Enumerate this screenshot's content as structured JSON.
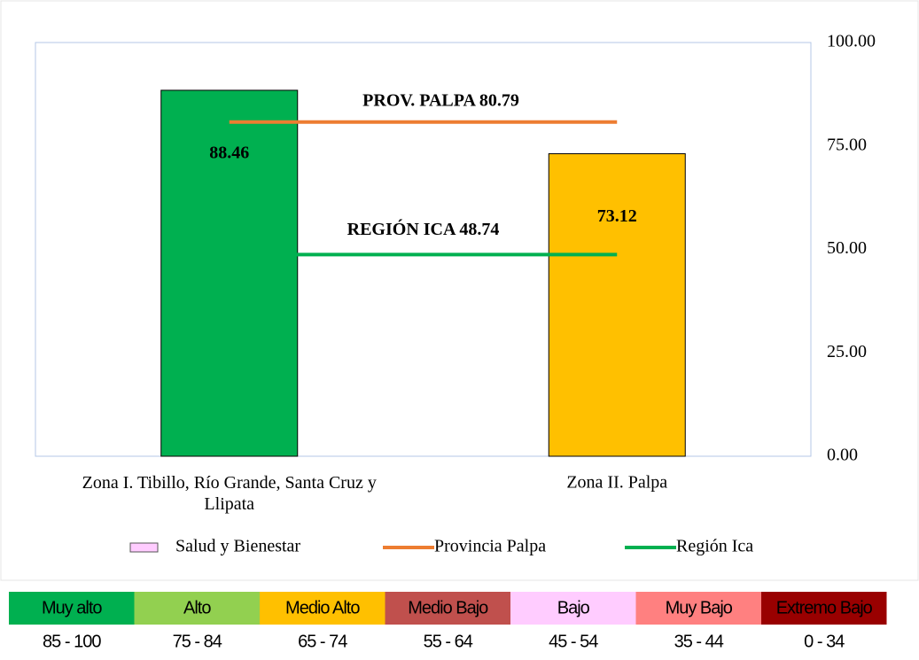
{
  "chart_data": {
    "type": "bar",
    "categories": [
      "Zona I. Tibillo, Río Grande, Santa Cruz y Llipata",
      "Zona II. Palpa"
    ],
    "series": [
      {
        "name": "Salud y Bienestar",
        "color": "#ffccff",
        "values": [
          88.46,
          73.12
        ],
        "bar_colors": [
          "#00b050",
          "#ffc000"
        ]
      }
    ],
    "reference_lines": [
      {
        "name": "Provincia Palpa",
        "color": "#ed7d31",
        "value": 80.79,
        "annotation": "PROV. PALPA 80.79",
        "annotation_color": "#b84c48"
      },
      {
        "name": "Región Ica",
        "color": "#00b050",
        "value": 48.74,
        "annotation": "REGIÓN ICA 48.74",
        "annotation_color": "#00b050"
      }
    ],
    "ylim": [
      0,
      100
    ],
    "yticks": [
      {
        "value": 0,
        "label": "0.00"
      },
      {
        "value": 25,
        "label": "25.00"
      },
      {
        "value": 50,
        "label": "50.00"
      },
      {
        "value": 75,
        "label": "75.00"
      },
      {
        "value": 100,
        "label": "100.00"
      }
    ],
    "y_axis_side": "right",
    "legend": "bottom"
  },
  "scale": [
    {
      "label": "Muy alto",
      "range": "85 - 100",
      "color": "#00b050",
      "text_color": "#000000"
    },
    {
      "label": "Alto",
      "range": "75 - 84",
      "color": "#92d050",
      "text_color": "#000000"
    },
    {
      "label": "Medio Alto",
      "range": "65 - 74",
      "color": "#ffc000",
      "text_color": "#000000"
    },
    {
      "label": "Medio Bajo",
      "range": "55 - 64",
      "color": "#c0504d",
      "text_color": "#000000"
    },
    {
      "label": "Bajo",
      "range": "45 - 54",
      "color": "#ffccff",
      "text_color": "#000000"
    },
    {
      "label": "Muy Bajo",
      "range": "35 - 44",
      "color": "#ff8080",
      "text_color": "#000000"
    },
    {
      "label": "Extremo Bajo",
      "range": "0 - 34",
      "color": "#990000",
      "text_color": "#ff3333"
    }
  ]
}
